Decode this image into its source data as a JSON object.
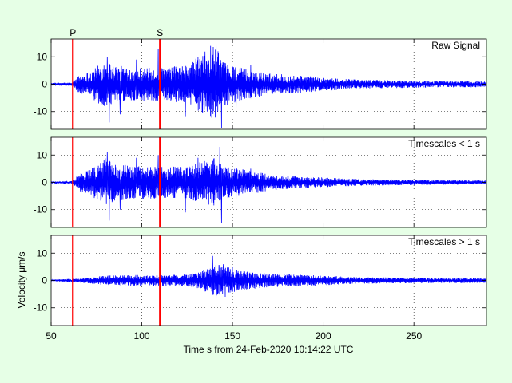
{
  "figure": {
    "background": "#e6ffe6",
    "axes_background": "#ffffff",
    "signal_color": "#0000ff",
    "marker_color": "#ff0000"
  },
  "chart_data": {
    "type": "line",
    "xlabel": "Time s from 24-Feb-2020 10:14:22 UTC",
    "ylabel": "Velocity μm/s",
    "xlim": [
      50,
      290
    ],
    "xticks": [
      50,
      100,
      150,
      200,
      250
    ],
    "ylim": [
      -16.5,
      16.5
    ],
    "yticks": [
      -10,
      0,
      10
    ],
    "grid": true,
    "grid_style": "dotted",
    "markers": [
      {
        "label": "P",
        "x": 62
      },
      {
        "label": "S",
        "x": 110
      }
    ],
    "panels": [
      {
        "title": "Raw Signal",
        "envelope": [
          [
            50,
            0.5
          ],
          [
            62,
            0.6
          ],
          [
            65,
            3
          ],
          [
            72,
            5
          ],
          [
            80,
            9
          ],
          [
            85,
            7
          ],
          [
            95,
            6
          ],
          [
            110,
            6
          ],
          [
            125,
            7
          ],
          [
            135,
            12
          ],
          [
            140,
            14
          ],
          [
            145,
            8
          ],
          [
            155,
            6
          ],
          [
            170,
            4
          ],
          [
            190,
            3
          ],
          [
            200,
            2.5
          ],
          [
            220,
            1.6
          ],
          [
            250,
            1.3
          ],
          [
            290,
            1.1
          ]
        ],
        "peaks": [
          {
            "x": 82,
            "y": -14
          },
          {
            "x": 81,
            "y": 10
          },
          {
            "x": 88,
            "y": -11
          },
          {
            "x": 97,
            "y": 9
          },
          {
            "x": 109,
            "y": 13
          },
          {
            "x": 110,
            "y": -12
          },
          {
            "x": 124,
            "y": -12
          },
          {
            "x": 131,
            "y": 10
          },
          {
            "x": 136,
            "y": -10
          },
          {
            "x": 138,
            "y": 14
          },
          {
            "x": 141,
            "y": 15
          },
          {
            "x": 144,
            "y": -16
          },
          {
            "x": 142,
            "y": 12
          },
          {
            "x": 152,
            "y": -9
          },
          {
            "x": 160,
            "y": 7
          }
        ]
      },
      {
        "title": "Timescales < 1 s",
        "envelope": [
          [
            50,
            0.4
          ],
          [
            62,
            0.5
          ],
          [
            65,
            3
          ],
          [
            72,
            5
          ],
          [
            80,
            9
          ],
          [
            85,
            7
          ],
          [
            95,
            6
          ],
          [
            110,
            6
          ],
          [
            125,
            6
          ],
          [
            135,
            8
          ],
          [
            140,
            9
          ],
          [
            145,
            6
          ],
          [
            155,
            5
          ],
          [
            170,
            3
          ],
          [
            190,
            2
          ],
          [
            200,
            1.8
          ],
          [
            220,
            1.2
          ],
          [
            250,
            1.0
          ],
          [
            290,
            0.8
          ]
        ],
        "peaks": [
          {
            "x": 82,
            "y": -14
          },
          {
            "x": 81,
            "y": 11
          },
          {
            "x": 88,
            "y": -10
          },
          {
            "x": 97,
            "y": 9
          },
          {
            "x": 109,
            "y": 10
          },
          {
            "x": 110,
            "y": -11
          },
          {
            "x": 124,
            "y": -11
          },
          {
            "x": 131,
            "y": 9
          },
          {
            "x": 143,
            "y": 13
          },
          {
            "x": 144,
            "y": -15
          },
          {
            "x": 152,
            "y": -7
          },
          {
            "x": 160,
            "y": 5
          }
        ]
      },
      {
        "title": "Timescales > 1 s",
        "envelope": [
          [
            50,
            0.3
          ],
          [
            62,
            0.6
          ],
          [
            70,
            1
          ],
          [
            80,
            1.8
          ],
          [
            95,
            2
          ],
          [
            110,
            2
          ],
          [
            125,
            2.2
          ],
          [
            132,
            3
          ],
          [
            138,
            5
          ],
          [
            142,
            6
          ],
          [
            148,
            5
          ],
          [
            155,
            3.5
          ],
          [
            170,
            2.5
          ],
          [
            190,
            2
          ],
          [
            200,
            1.8
          ],
          [
            220,
            1.2
          ],
          [
            250,
            1.0
          ],
          [
            290,
            0.9
          ]
        ],
        "peaks": [
          {
            "x": 139,
            "y": 9
          },
          {
            "x": 141,
            "y": -7
          },
          {
            "x": 145,
            "y": 6
          },
          {
            "x": 146,
            "y": -6
          },
          {
            "x": 150,
            "y": 5
          },
          {
            "x": 135,
            "y": -4
          }
        ]
      }
    ]
  }
}
